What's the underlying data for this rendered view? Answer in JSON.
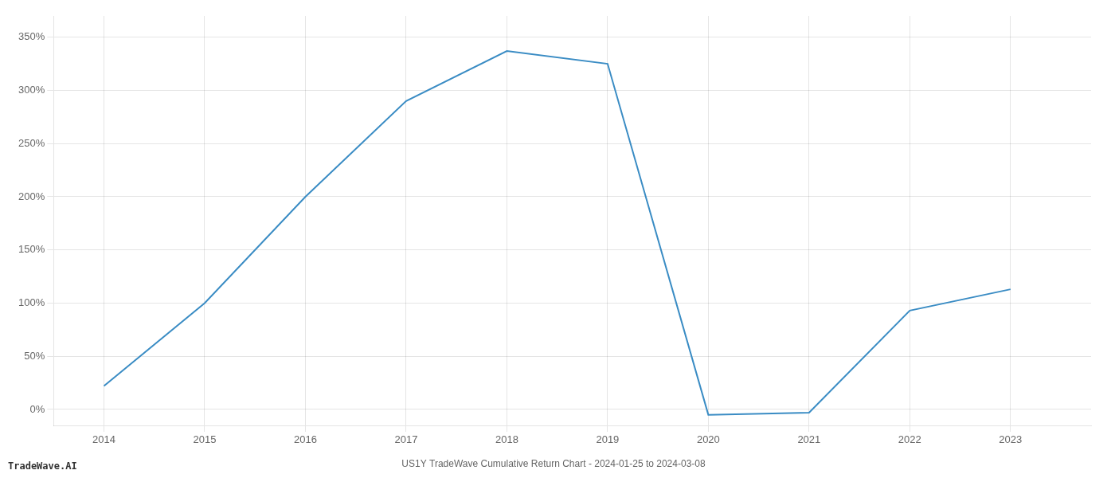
{
  "chart_data": {
    "type": "line",
    "title": "US1Y TradeWave Cumulative Return Chart - 2024-01-25 to 2024-03-08",
    "annotations": [
      "TradeWave.AI"
    ],
    "x": [
      2014,
      2015,
      2016,
      2017,
      2018,
      2019,
      2020,
      2021,
      2022,
      2023
    ],
    "values": [
      22,
      100,
      200,
      290,
      337,
      325,
      -5,
      -3,
      93,
      113
    ],
    "color": "#3a8cc4",
    "xlim": [
      2013.5,
      2023.8
    ],
    "xticks": [
      2014,
      2015,
      2016,
      2017,
      2018,
      2019,
      2020,
      2021,
      2022,
      2023
    ],
    "ylim": [
      -15,
      370
    ],
    "yticks": [
      {
        "value": 0,
        "label": "0%"
      },
      {
        "value": 50,
        "label": "50%"
      },
      {
        "value": 100,
        "label": "100%"
      },
      {
        "value": 150,
        "label": "150%"
      },
      {
        "value": 200,
        "label": "200%"
      },
      {
        "value": 250,
        "label": "250%"
      },
      {
        "value": 300,
        "label": "300%"
      },
      {
        "value": 350,
        "label": "350%"
      }
    ],
    "grid": true
  }
}
